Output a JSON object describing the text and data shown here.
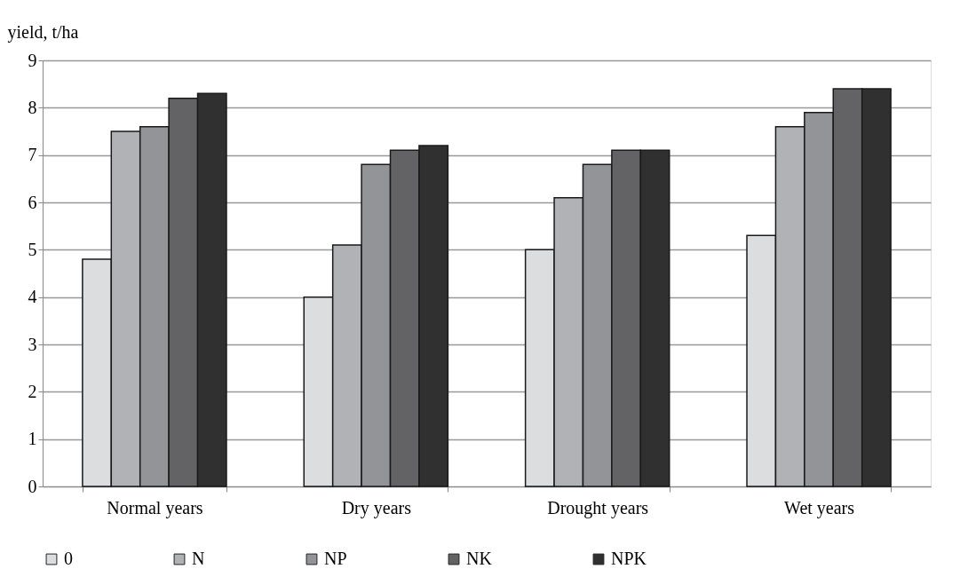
{
  "chart_data": {
    "type": "bar",
    "ylabel": "yield, t/ha",
    "categories": [
      "Normal years",
      "Dry years",
      "Drought years",
      "Wet years"
    ],
    "series": [
      {
        "name": "0",
        "color": "#dcdddf",
        "values": [
          4.8,
          4.0,
          5.0,
          5.3
        ]
      },
      {
        "name": "N",
        "color": "#b1b2b5",
        "values": [
          7.5,
          5.1,
          6.1,
          7.6
        ]
      },
      {
        "name": "NP",
        "color": "#939497",
        "values": [
          7.6,
          6.8,
          6.8,
          7.9
        ]
      },
      {
        "name": "NK",
        "color": "#636365",
        "values": [
          8.2,
          7.1,
          7.1,
          8.4
        ]
      },
      {
        "name": "NPK",
        "color": "#313031",
        "values": [
          8.3,
          7.2,
          7.1,
          8.4
        ]
      }
    ],
    "ylim": [
      0,
      9
    ],
    "yticks": [
      0,
      1,
      2,
      3,
      4,
      5,
      6,
      7,
      8,
      9
    ],
    "grid": "y",
    "legend": "bottom"
  }
}
